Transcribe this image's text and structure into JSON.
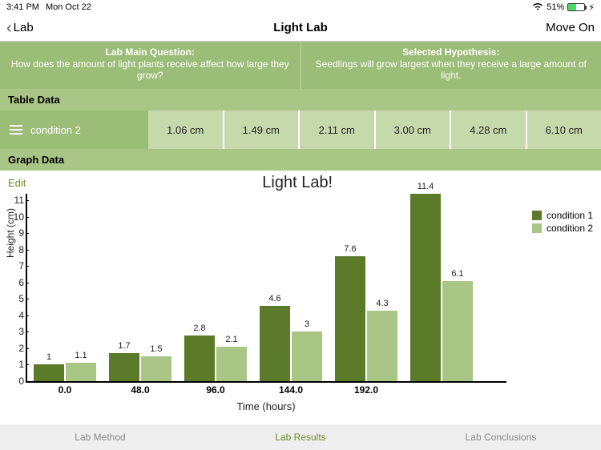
{
  "status": {
    "time": "3:41 PM",
    "date": "Mon Oct 22",
    "battery_pct": "51%",
    "battery_fill_pct": 51
  },
  "nav": {
    "back_label": "Lab",
    "title": "Light Lab",
    "forward_label": "Move On"
  },
  "header": {
    "left_title": "Lab Main Question:",
    "left_body": "How does the amount of light plants receive affect how large they grow?",
    "right_title": "Selected Hypothesis:",
    "right_body": "Seedlings will grow largest when they receive a large amount of light."
  },
  "table": {
    "section_label": "Table Data",
    "row_label": "condition 2",
    "cells": [
      "1.06 cm",
      "1.49 cm",
      "2.11 cm",
      "3.00 cm",
      "4.28 cm",
      "6.10 cm"
    ]
  },
  "graph": {
    "section_label": "Graph Data",
    "edit_label": "Edit",
    "title": "Light Lab!",
    "xlabel": "Time (hours)",
    "ylabel": "Height (cm)",
    "colors": {
      "series1": "#5b7a2a",
      "series2": "#a9c687",
      "axis": "#000000",
      "header_bg": "#9bbd77",
      "section_bg": "#a9c687",
      "cell_bg": "#c6d9ab",
      "tab_active": "#6b8e23",
      "tab_inactive": "#8a8a8a"
    },
    "y": {
      "min": 0,
      "max": 11.5,
      "ticks": [
        0,
        1,
        2,
        3,
        4,
        5,
        6,
        7,
        8,
        9,
        10,
        11
      ]
    },
    "legend": [
      {
        "label": "condition 1",
        "color": "#5b7a2a"
      },
      {
        "label": "condition 2",
        "color": "#a9c687"
      }
    ],
    "categories": [
      "0.0",
      "48.0",
      "96.0",
      "144.0",
      "192.0"
    ],
    "series1": [
      1.0,
      1.7,
      2.8,
      4.6,
      7.6,
      11.4
    ],
    "series2": [
      1.1,
      1.5,
      2.1,
      3.0,
      4.3,
      6.1
    ],
    "display_groups": [
      {
        "x": "0.0",
        "v1": 1.0,
        "v2": 1.1
      },
      {
        "x": "48.0",
        "v1": 1.7,
        "v2": 1.5
      },
      {
        "x": "96.0",
        "v1": 2.8,
        "v2": 2.1
      },
      {
        "x": "144.0",
        "v1": 4.6,
        "v2": 3.0
      },
      {
        "x": "192.0",
        "v1": 7.6,
        "v2": 4.3
      },
      {
        "x": "",
        "v1": 11.4,
        "v2": 6.1
      }
    ]
  },
  "tabs": {
    "method": "Lab Method",
    "results": "Lab Results",
    "conclusions": "Lab Conclusions"
  }
}
